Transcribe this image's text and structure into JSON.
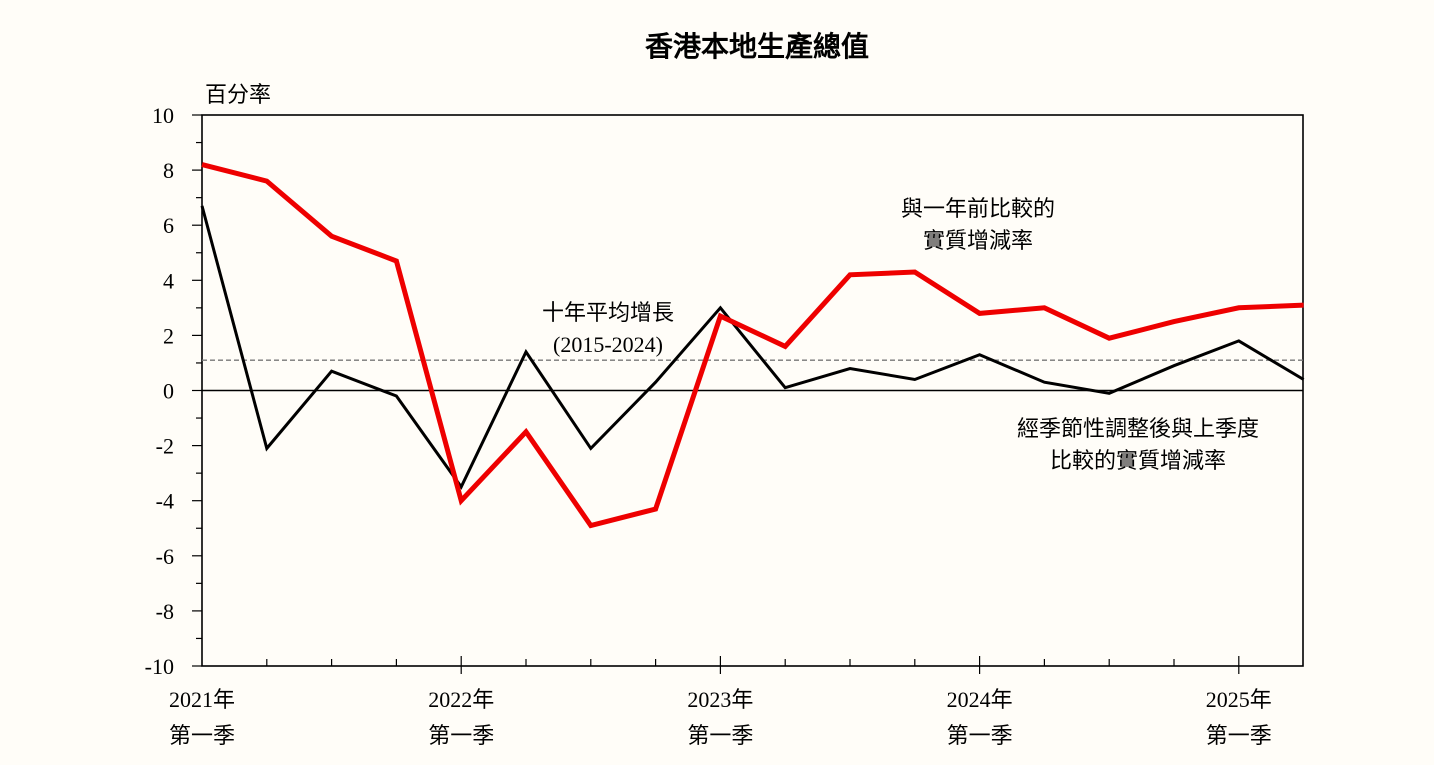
{
  "chart_data": {
    "type": "line",
    "title": "香港本地生產總值",
    "ylabel": "百分率",
    "ylim": [
      -10,
      10
    ],
    "yticks": [
      -10,
      -8,
      -6,
      -4,
      -2,
      0,
      2,
      4,
      6,
      8,
      10
    ],
    "x": [
      "2021Q1",
      "2021Q2",
      "2021Q3",
      "2021Q4",
      "2022Q1",
      "2022Q2",
      "2022Q3",
      "2022Q4",
      "2023Q1",
      "2023Q2",
      "2023Q3",
      "2023Q4",
      "2024Q1",
      "2024Q2",
      "2024Q3",
      "2024Q4",
      "2025Q1",
      "2025Q2"
    ],
    "xtick_labels": [
      {
        "year": "2021年",
        "quarter": "第一季"
      },
      {
        "year": "2022年",
        "quarter": "第一季"
      },
      {
        "year": "2023年",
        "quarter": "第一季"
      },
      {
        "year": "2024年",
        "quarter": "第一季"
      },
      {
        "year": "2025年",
        "quarter": "第一季"
      }
    ],
    "series": [
      {
        "name_lines": [
          "與一年前比較的",
          "實質增減率"
        ],
        "color": "#ee0000",
        "values": [
          8.2,
          7.6,
          5.6,
          4.7,
          -4.0,
          -1.5,
          -4.9,
          -4.3,
          2.7,
          1.6,
          4.2,
          4.3,
          2.8,
          3.0,
          1.9,
          2.5,
          3.0,
          3.1
        ]
      },
      {
        "name_lines": [
          "經季節性調整後與上季度",
          "比較的實質增減率"
        ],
        "color": "#000000",
        "values": [
          6.7,
          -2.1,
          0.7,
          -0.2,
          -3.5,
          1.4,
          -2.1,
          0.3,
          3.0,
          0.1,
          0.8,
          0.4,
          1.3,
          0.3,
          -0.1,
          0.9,
          1.8,
          0.4
        ]
      }
    ],
    "reference_line": {
      "value": 1.1,
      "label_lines": [
        "十年平均增長",
        "(2015-2024)"
      ],
      "color": "#777777"
    }
  }
}
